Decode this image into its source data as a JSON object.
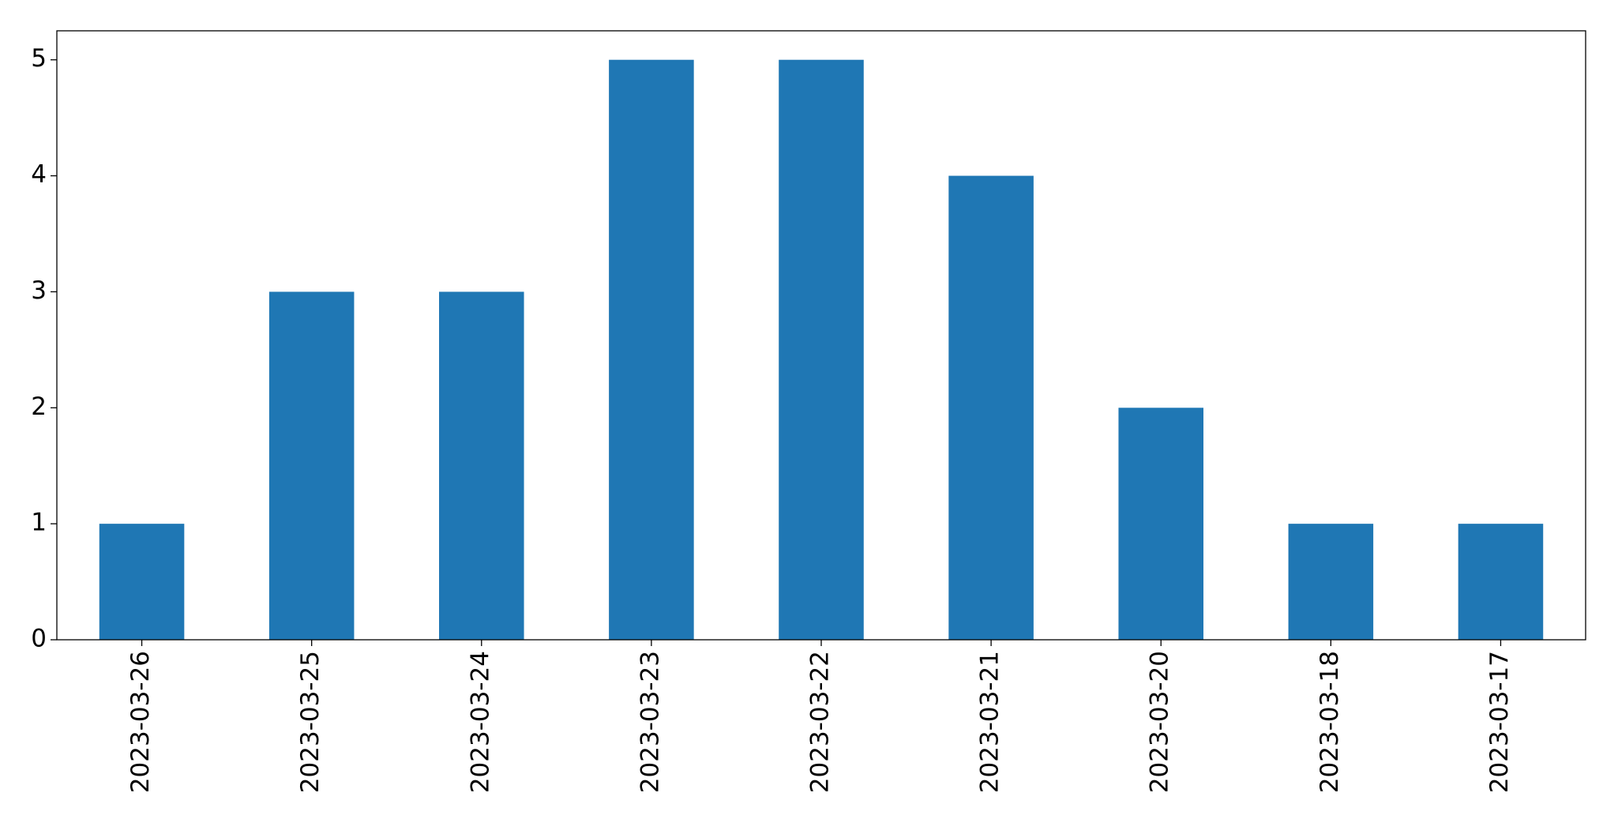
{
  "chart_data": {
    "type": "bar",
    "categories": [
      "2023-03-26",
      "2023-03-25",
      "2023-03-24",
      "2023-03-23",
      "2023-03-22",
      "2023-03-21",
      "2023-03-20",
      "2023-03-18",
      "2023-03-17"
    ],
    "values": [
      1,
      3,
      3,
      5,
      5,
      4,
      2,
      1,
      1
    ],
    "color": "#1f77b4",
    "ylim": [
      0,
      5.25
    ],
    "yticks": [
      0,
      1,
      2,
      3,
      4,
      5
    ],
    "grid": false
  }
}
